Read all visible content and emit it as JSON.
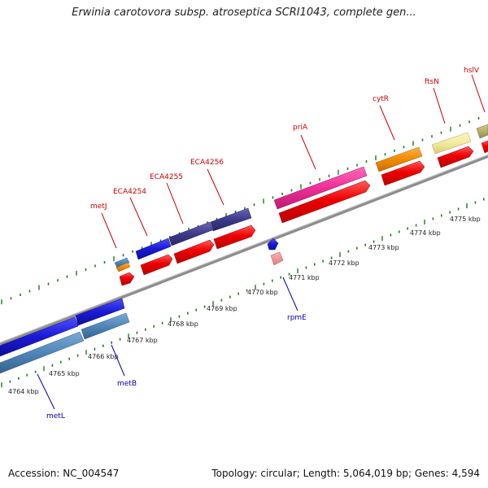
{
  "title": "Erwinia carotovora subsp. atroseptica SCRI1043, complete gen...",
  "footer": {
    "accession": "Accession: NC_004547",
    "info": "Topology: circular; Length: 5,064,019 bp; Genes: 4,594"
  },
  "colors": {
    "backbone": "#8c8c8c",
    "tick": "#1f7a1f",
    "forward_label": "#cc0000",
    "reverse_label": "#0000aa",
    "cds_red": "#ee0000",
    "blue_gene": "#1a1ad6",
    "steel_gene": "#4f86b8",
    "navy_gene": "#3d3a8c",
    "pink_gene": "#ee2f96",
    "orange_gene": "#f28a00",
    "cream_gene": "#f3eb9c",
    "olive_gene": "#b5b06a"
  },
  "kbp_labels": [
    "4764 kbp",
    "4765 kbp",
    "4766 kbp",
    "4767 kbp",
    "4768 kbp",
    "4769 kbp",
    "4770 kbp",
    "4771 kbp",
    "4772 kbp",
    "4773 kbp",
    "4774 kbp",
    "4775 kbp"
  ],
  "forward_genes": [
    {
      "label": "metJ"
    },
    {
      "label": "ECA4254"
    },
    {
      "label": "ECA4255"
    },
    {
      "label": "ECA4256"
    },
    {
      "label": "priA"
    },
    {
      "label": "cytR"
    },
    {
      "label": "ftsN"
    },
    {
      "label": "hslV"
    }
  ],
  "reverse_genes": [
    {
      "label": "metL"
    },
    {
      "label": "metB"
    },
    {
      "label": "rpmE"
    }
  ]
}
